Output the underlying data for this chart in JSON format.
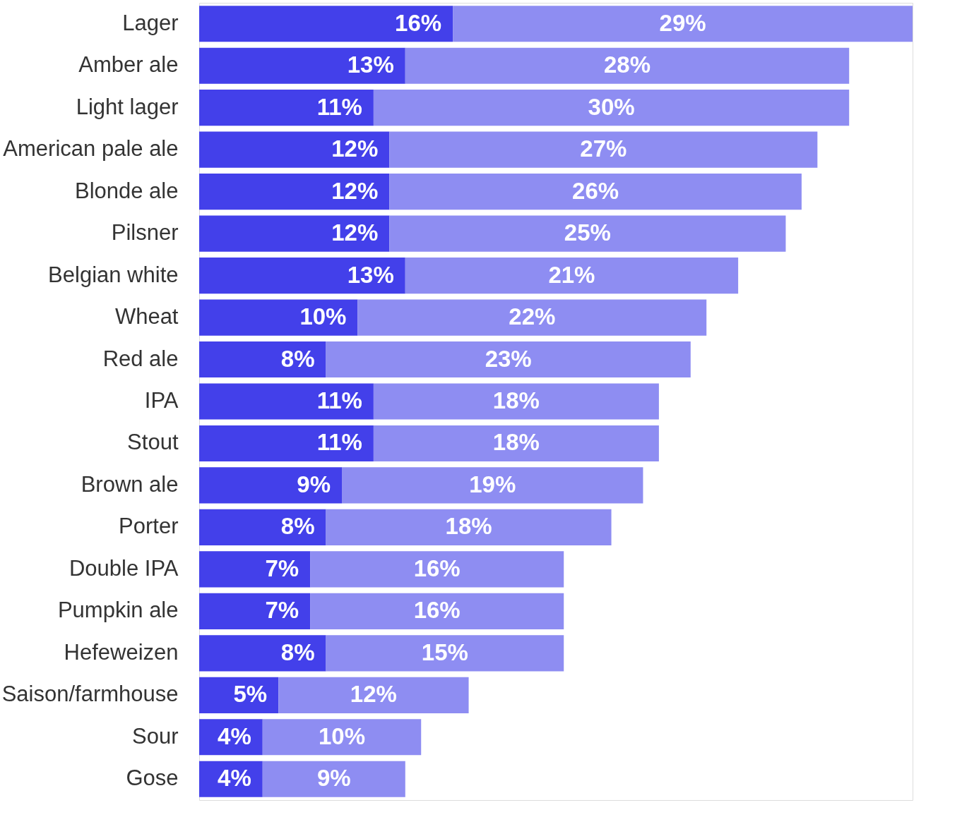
{
  "chart_data": {
    "type": "bar",
    "orientation": "horizontal",
    "stacked": true,
    "tick_labels": "y",
    "xlim": [
      0,
      45
    ],
    "categories": [
      "Lager",
      "Amber ale",
      "Light lager",
      "American pale ale",
      "Blonde ale",
      "Pilsner",
      "Belgian white",
      "Wheat",
      "Red ale",
      "IPA",
      "Stout",
      "Brown ale",
      "Porter",
      "Double IPA",
      "Pumpkin ale",
      "Hefeweizen",
      "Saison/farmhouse",
      "Sour",
      "Gose"
    ],
    "series": [
      {
        "color": "#4340ea",
        "values": [
          16,
          13,
          11,
          12,
          12,
          12,
          13,
          10,
          8,
          11,
          11,
          9,
          8,
          7,
          7,
          8,
          5,
          4,
          4
        ],
        "value_labels": [
          "16%",
          "13%",
          "11%",
          "12%",
          "12%",
          "12%",
          "13%",
          "10%",
          "8%",
          "11%",
          "11%",
          "9%",
          "8%",
          "7%",
          "7%",
          "8%",
          "5%",
          "4%",
          "4%"
        ]
      },
      {
        "color": "#8e8df2",
        "values": [
          29,
          28,
          30,
          27,
          26,
          25,
          21,
          22,
          23,
          18,
          18,
          19,
          18,
          16,
          16,
          15,
          12,
          10,
          9
        ],
        "value_labels": [
          "29%",
          "28%",
          "30%",
          "27%",
          "26%",
          "25%",
          "21%",
          "22%",
          "23%",
          "18%",
          "18%",
          "19%",
          "18%",
          "16%",
          "16%",
          "15%",
          "12%",
          "10%",
          "9%"
        ]
      }
    ]
  }
}
